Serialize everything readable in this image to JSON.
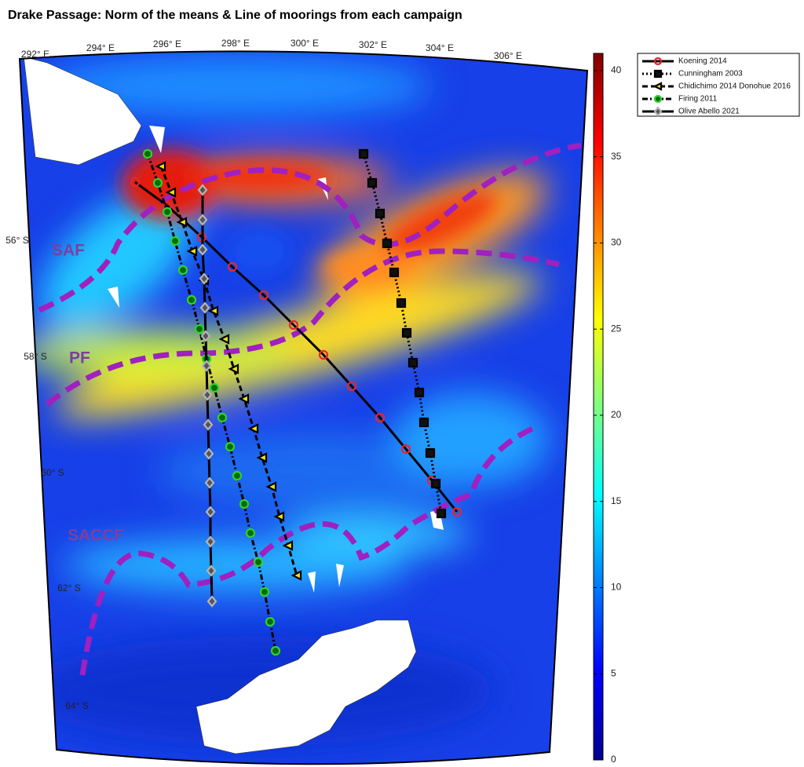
{
  "title": "Drake Passage: Norm of the means & Line of moorings from each campaign",
  "lon_labels": [
    "292° E",
    "294° E",
    "296° E",
    "298° E",
    "300° E",
    "302° E",
    "304° E",
    "306° E"
  ],
  "lat_labels": [
    "56° S",
    "58° S",
    "60° S",
    "62° S",
    "64° S"
  ],
  "fronts": [
    "SAF",
    "PF",
    "SACCF"
  ],
  "colorbar": {
    "lim": [
      0,
      41
    ],
    "ticks": [
      0,
      5,
      10,
      15,
      20,
      25,
      30,
      35,
      40
    ],
    "colormap": "jet"
  },
  "legend": [
    {
      "name": "Koening 2014",
      "color": "#e8262a",
      "marker": "circle",
      "line_style": "solid"
    },
    {
      "name": "Cunningham 2003",
      "color": "#111111",
      "marker": "square",
      "line_style": "dotted"
    },
    {
      "name": "Chidichimo 2014 Donohue 2016",
      "color": "#f2e313",
      "marker": "triangle",
      "line_style": "dashed"
    },
    {
      "name": "Firing 2011",
      "color": "#2fd12f",
      "marker": "hexagon",
      "line_style": "dashdot"
    },
    {
      "name": "Olive Abello 2021",
      "color": "#b4b4b4",
      "marker": "diamond",
      "line_style": "solid"
    }
  ]
}
